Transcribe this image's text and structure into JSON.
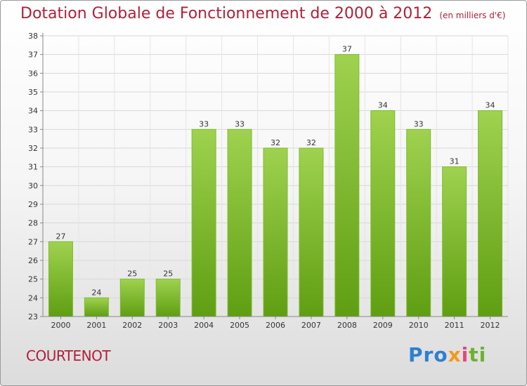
{
  "title": "Dotation Globale de Fonctionnement de 2000 à 2012",
  "unit_note": "(en milliers d'€)",
  "commune": "COURTENOT",
  "brand": {
    "p1": "Pro",
    "p2": "x",
    "p3": "i",
    "p4": "ti"
  },
  "colors": {
    "bar_top": "#9fd24f",
    "bar_bottom": "#5f9e12",
    "title": "#b0203a"
  },
  "chart_data": {
    "type": "bar",
    "title": "Dotation Globale de Fonctionnement de 2000 à 2012",
    "xlabel": "",
    "ylabel": "en milliers d'€",
    "categories": [
      "2000",
      "2001",
      "2002",
      "2003",
      "2004",
      "2005",
      "2006",
      "2007",
      "2008",
      "2009",
      "2010",
      "2011",
      "2012"
    ],
    "values": [
      27,
      24,
      25,
      25,
      33,
      33,
      32,
      32,
      37,
      34,
      33,
      31,
      34
    ],
    "ylim": [
      23,
      38
    ],
    "yticks": [
      23,
      24,
      25,
      26,
      27,
      28,
      29,
      30,
      31,
      32,
      33,
      34,
      35,
      36,
      37,
      38
    ],
    "grid": true
  }
}
